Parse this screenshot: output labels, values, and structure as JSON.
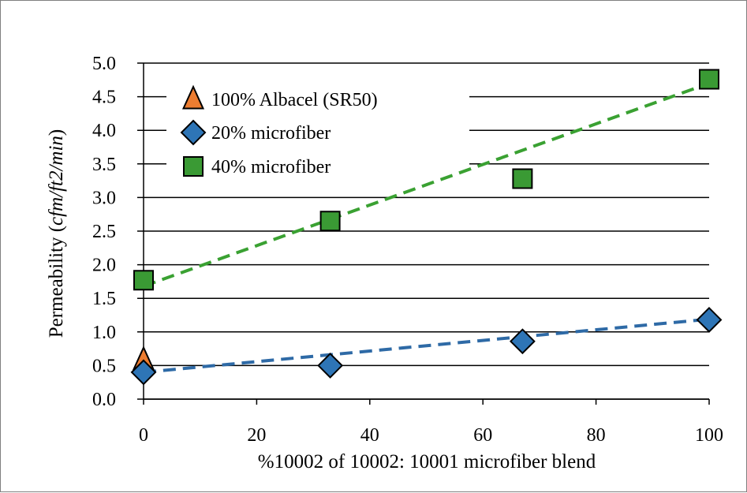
{
  "chart_data": {
    "type": "scatter",
    "xlabel": "%10002 of 10002: 10001 microfiber blend",
    "ylabel_prefix": "Permeability (",
    "ylabel_unit": "cfm/ft2/min",
    "ylabel_suffix": ")",
    "xlim": [
      0,
      100
    ],
    "ylim": [
      0,
      5
    ],
    "x_ticks": [
      0,
      20,
      40,
      60,
      80,
      100
    ],
    "y_ticks": [
      "0.0",
      "0.5",
      "1.0",
      "1.5",
      "2.0",
      "2.5",
      "3.0",
      "3.5",
      "4.0",
      "4.5",
      "5.0"
    ],
    "grid": "horizontal",
    "legend_position": "top-left",
    "series": [
      {
        "name": "100% Albacel (SR50)",
        "marker": "triangle",
        "color": "#ed7d31",
        "points": [
          {
            "x": 0,
            "y": 0.58
          }
        ],
        "trendline": null
      },
      {
        "name": "20% microfiber",
        "marker": "diamond",
        "color": "#2e75b6",
        "trend_color": "#2e6aa6",
        "points": [
          {
            "x": 0,
            "y": 0.4
          },
          {
            "x": 33,
            "y": 0.5
          },
          {
            "x": 67,
            "y": 0.86
          },
          {
            "x": 100,
            "y": 1.18
          }
        ],
        "trendline": [
          {
            "x": 0,
            "y": 0.4
          },
          {
            "x": 100,
            "y": 1.19
          }
        ]
      },
      {
        "name": "40% microfiber",
        "marker": "square",
        "color": "#3a9a34",
        "trend_color": "#3aa132",
        "points": [
          {
            "x": 0,
            "y": 1.77
          },
          {
            "x": 33,
            "y": 2.65
          },
          {
            "x": 67,
            "y": 3.28
          },
          {
            "x": 100,
            "y": 4.76
          }
        ],
        "trendline": [
          {
            "x": 0,
            "y": 1.68
          },
          {
            "x": 100,
            "y": 4.7
          }
        ]
      }
    ]
  }
}
